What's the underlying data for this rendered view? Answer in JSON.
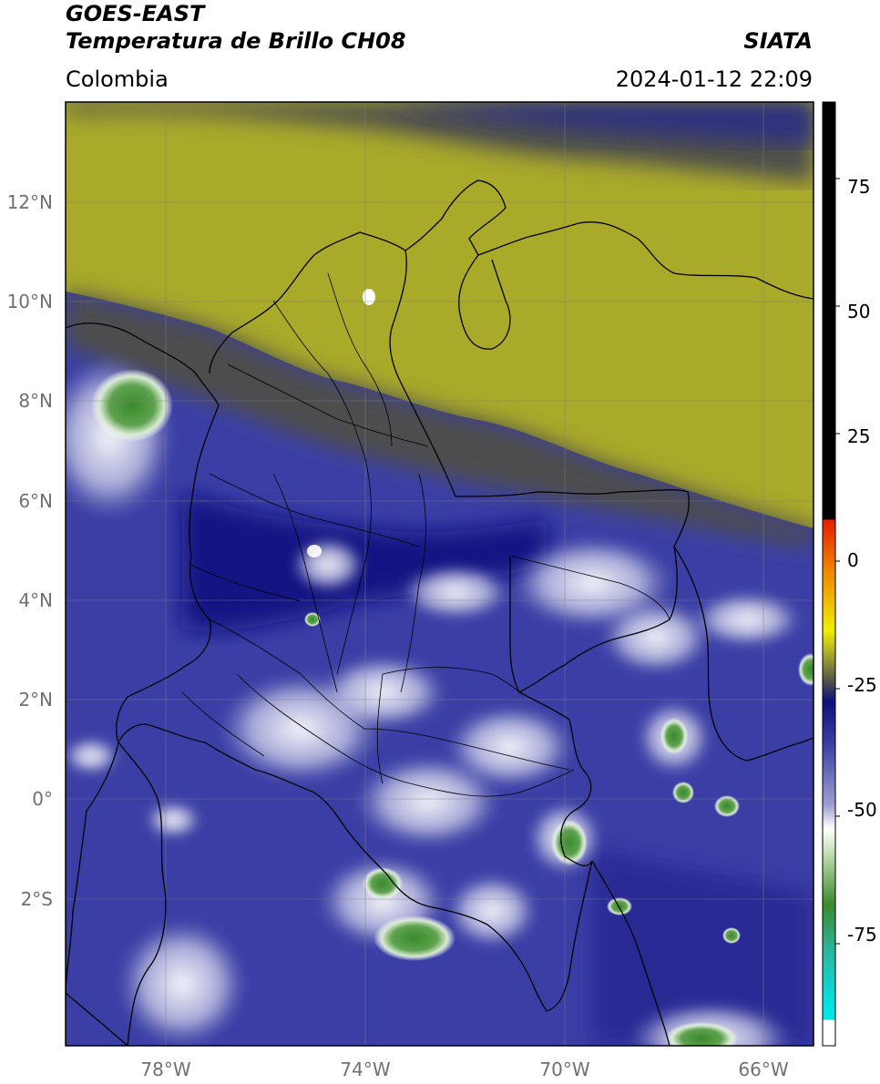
{
  "header": {
    "satellite": "GOES-EAST",
    "product": "Temperatura de Brillo CH08",
    "region": "Colombia",
    "agency": "SIATA",
    "datetime": "2024-01-12 22:09"
  },
  "map": {
    "lat_ticks": [
      "12°N",
      "10°N",
      "8°N",
      "6°N",
      "4°N",
      "2°N",
      "0°",
      "2°S"
    ],
    "lon_ticks": [
      "78°W",
      "74°W",
      "70°W",
      "66°W"
    ],
    "lat_range": [
      -4.8,
      14.2
    ],
    "lon_range": [
      -80,
      -65
    ],
    "grid": true
  },
  "colorbar": {
    "ticks": [
      "75",
      "50",
      "25",
      "0",
      "-25",
      "-50",
      "-75"
    ],
    "range": [
      -95,
      90
    ],
    "colors": {
      "black": "#000000",
      "red": "#e81c00",
      "orange": "#f08c00",
      "yellow": "#f0ee00",
      "olive": "#a9a92a",
      "gray": "#4d4d4d",
      "navy": "#0d107e",
      "blue": "#3b3fa5",
      "white": "#ffffff",
      "green": "#3a8a2c",
      "teal": "#2bb5a1",
      "cyan": "#00e5e5"
    }
  }
}
